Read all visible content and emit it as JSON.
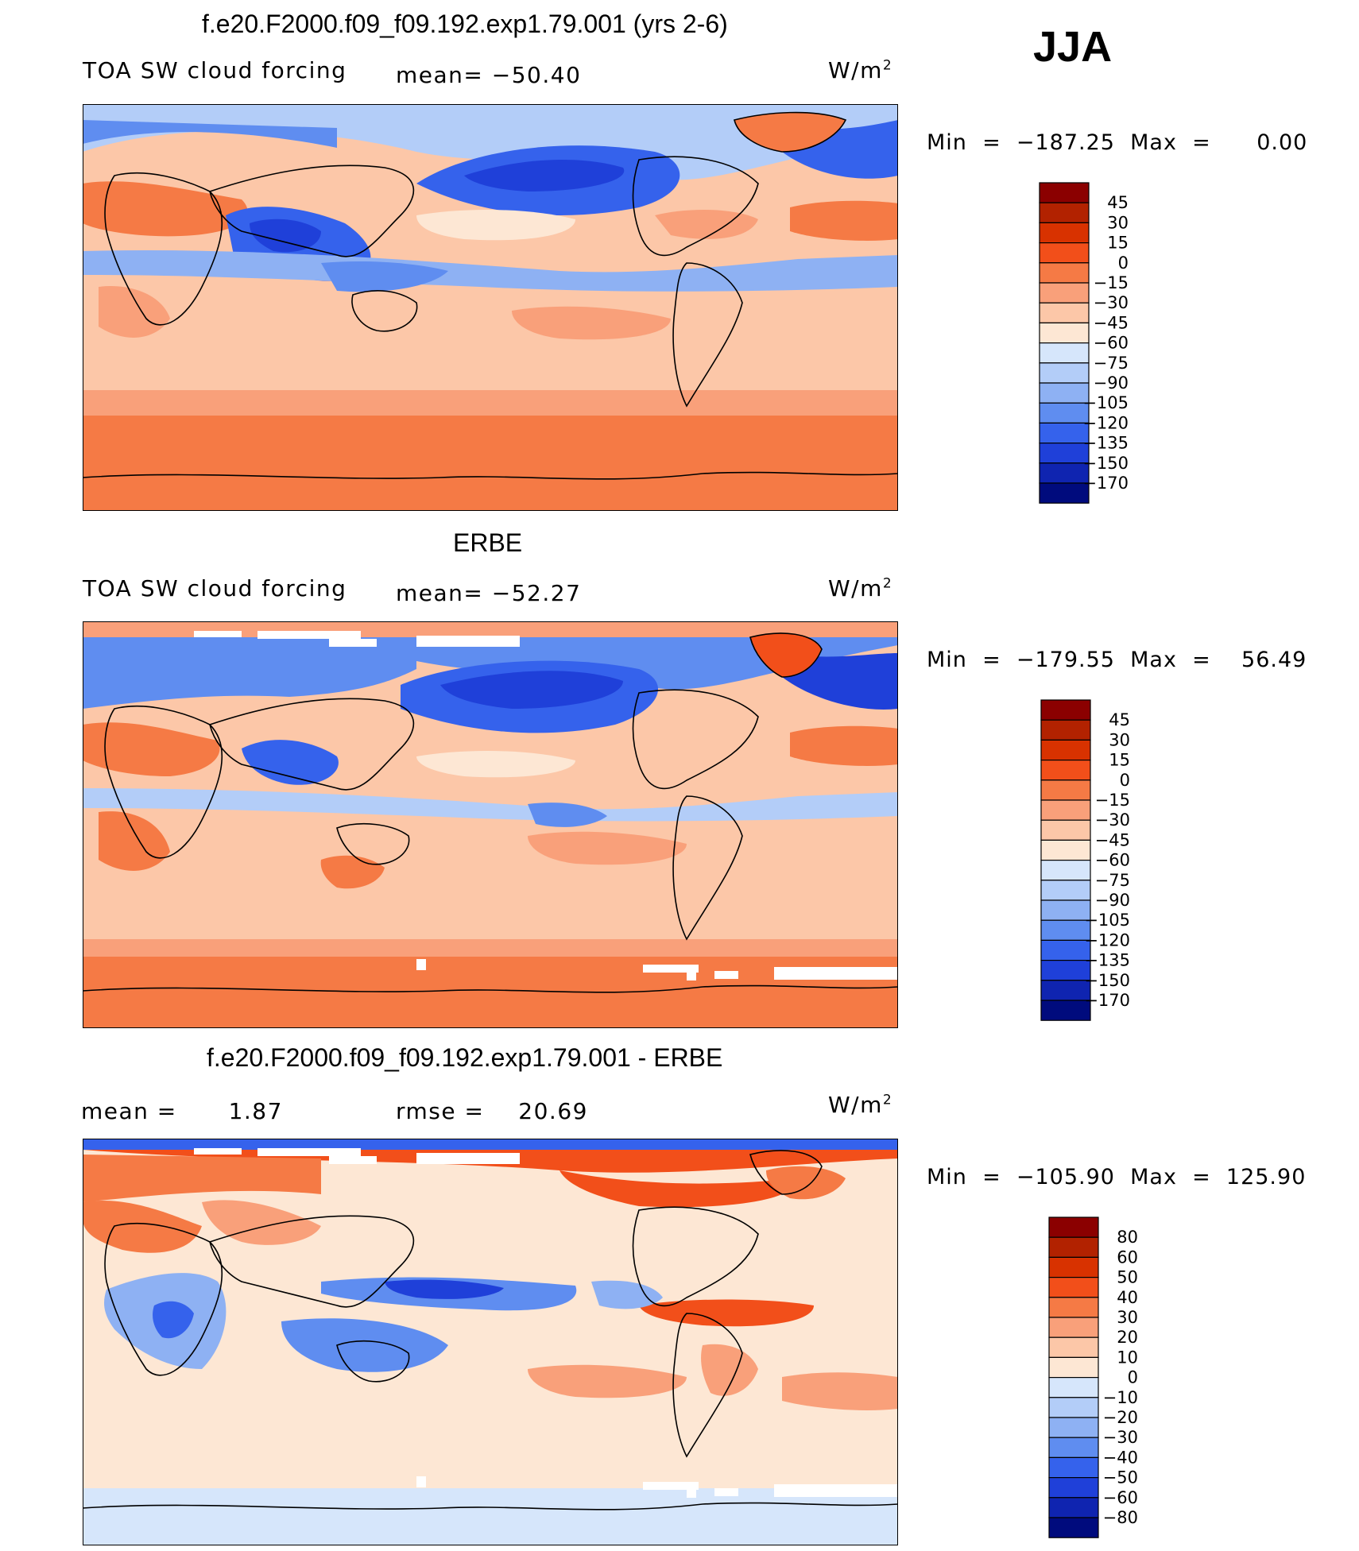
{
  "season": "JJA",
  "chart_data": [
    {
      "type": "heatmap",
      "title": "f.e20.F2000.f09_f09.192.exp1.79.001 (yrs 2-6)",
      "variable": "TOA SW cloud forcing",
      "stat_left": "mean=",
      "stat_value": "−50.40",
      "units": "W/m",
      "units_exp": "2",
      "minmax": "Min  =  −187.25  Max  =      0.00",
      "levels": [
        "45",
        "30",
        "15",
        "0",
        "−15",
        "−30",
        "−45",
        "−60",
        "−75",
        "−90",
        "−105",
        "−120",
        "−135",
        "−150",
        "−170"
      ],
      "colors": [
        "#8b0000",
        "#b22200",
        "#d83200",
        "#f24f1a",
        "#f57a45",
        "#f9a07a",
        "#fcc7a8",
        "#fde7d4",
        "#d6e6fb",
        "#b3cdf8",
        "#8eb1f3",
        "#5f8df0",
        "#3562ec",
        "#1f40d9",
        "#0f24b0",
        "#000b7d"
      ]
    },
    {
      "type": "heatmap",
      "title": "ERBE",
      "variable": "TOA SW cloud forcing",
      "stat_left": "mean=",
      "stat_value": "−52.27",
      "units": "W/m",
      "units_exp": "2",
      "minmax": "Min  =  −179.55  Max  =    56.49",
      "levels": [
        "45",
        "30",
        "15",
        "0",
        "−15",
        "−30",
        "−45",
        "−60",
        "−75",
        "−90",
        "−105",
        "−120",
        "−135",
        "−150",
        "−170"
      ],
      "colors": [
        "#8b0000",
        "#b22200",
        "#d83200",
        "#f24f1a",
        "#f57a45",
        "#f9a07a",
        "#fcc7a8",
        "#fde7d4",
        "#d6e6fb",
        "#b3cdf8",
        "#8eb1f3",
        "#5f8df0",
        "#3562ec",
        "#1f40d9",
        "#0f24b0",
        "#000b7d"
      ]
    },
    {
      "type": "heatmap",
      "title": "f.e20.F2000.f09_f09.192.exp1.79.001 - ERBE",
      "stat_left": "mean  =",
      "stat_left_value": "1.87",
      "stat_right": "rmse  =",
      "stat_right_value": "20.69",
      "units": "W/m",
      "units_exp": "2",
      "minmax": "Min  =  −105.90  Max  =  125.90",
      "levels": [
        "80",
        "60",
        "50",
        "40",
        "30",
        "20",
        "10",
        "0",
        "−10",
        "−20",
        "−30",
        "−40",
        "−50",
        "−60",
        "−80"
      ],
      "colors": [
        "#8b0000",
        "#b22200",
        "#d83200",
        "#f24f1a",
        "#f57a45",
        "#f9a07a",
        "#fcc7a8",
        "#fde7d4",
        "#d6e6fb",
        "#b3cdf8",
        "#8eb1f3",
        "#5f8df0",
        "#3562ec",
        "#1f40d9",
        "#0f24b0",
        "#000b7d"
      ]
    }
  ]
}
